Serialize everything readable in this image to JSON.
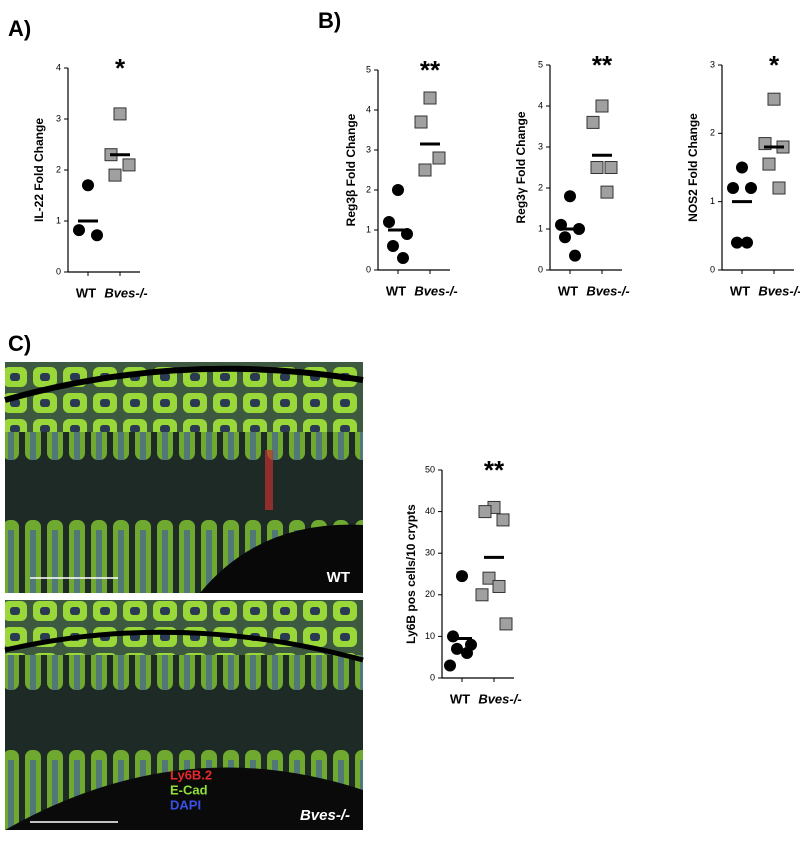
{
  "panels": [
    "A)",
    "B)",
    "C)"
  ],
  "chart_data": [
    {
      "type": "dot",
      "title": "IL-22  Fold Change",
      "annotation": "*",
      "ylim": [
        0,
        4
      ],
      "yticks": [
        0,
        1,
        2,
        3,
        4
      ],
      "series": [
        {
          "name": "WT",
          "color": "#000000",
          "marker": "circle",
          "values": [
            1.7,
            0.82,
            0.72
          ],
          "mean": 1.0
        },
        {
          "name": "Bves-/-",
          "color": "#a0a0a0",
          "marker": "square",
          "values": [
            3.1,
            2.3,
            2.1,
            1.9
          ],
          "mean": 2.3
        }
      ]
    },
    {
      "type": "dot",
      "title": "Reg3β Fold Change",
      "annotation": "**",
      "ylim": [
        0,
        5
      ],
      "yticks": [
        0,
        1,
        2,
        3,
        4,
        5
      ],
      "series": [
        {
          "name": "WT",
          "color": "#000000",
          "marker": "circle",
          "values": [
            2.0,
            1.2,
            0.9,
            0.6,
            0.3
          ],
          "mean": 1.0
        },
        {
          "name": "Bves-/-",
          "color": "#a0a0a0",
          "marker": "square",
          "values": [
            4.3,
            3.7,
            2.8,
            2.5
          ],
          "mean": 3.15
        }
      ]
    },
    {
      "type": "dot",
      "title": "Reg3γ Fold Change",
      "annotation": "**",
      "ylim": [
        0,
        5
      ],
      "yticks": [
        0,
        1,
        2,
        3,
        4,
        5
      ],
      "series": [
        {
          "name": "WT",
          "color": "#000000",
          "marker": "circle",
          "values": [
            1.8,
            1.1,
            1.0,
            0.8,
            0.35
          ],
          "mean": 1.0
        },
        {
          "name": "Bves-/-",
          "color": "#a0a0a0",
          "marker": "square",
          "values": [
            4.0,
            3.6,
            2.5,
            2.5,
            1.9
          ],
          "mean": 2.8
        }
      ]
    },
    {
      "type": "dot",
      "title": "NOS2 Fold Change",
      "annotation": "*",
      "ylim": [
        0,
        3
      ],
      "yticks": [
        0,
        1,
        2,
        3
      ],
      "series": [
        {
          "name": "WT",
          "color": "#000000",
          "marker": "circle",
          "values": [
            1.5,
            1.2,
            1.2,
            0.4,
            0.4
          ],
          "mean": 1.0
        },
        {
          "name": "Bves-/-",
          "color": "#a0a0a0",
          "marker": "square",
          "values": [
            2.5,
            1.85,
            1.8,
            1.55,
            1.2
          ],
          "mean": 1.8
        }
      ]
    },
    {
      "type": "dot",
      "title": "Ly6B pos cells/10 crypts",
      "annotation": "**",
      "ylim": [
        0,
        50
      ],
      "yticks": [
        0,
        10,
        20,
        30,
        40,
        50
      ],
      "series": [
        {
          "name": "WT",
          "color": "#000000",
          "marker": "circle",
          "values": [
            24.5,
            10,
            8,
            7,
            6,
            3
          ],
          "mean": 9.5
        },
        {
          "name": "Bves-/-",
          "color": "#a0a0a0",
          "marker": "square",
          "values": [
            41,
            40,
            38,
            24,
            22,
            20,
            13
          ],
          "mean": 29
        }
      ]
    }
  ],
  "images": {
    "wt_label": "WT",
    "bves_label": "Bves-/-",
    "stains": [
      {
        "name": "Ly6B.2",
        "color": "#e8282a"
      },
      {
        "name": "E-Cad",
        "color": "#8fe03a"
      },
      {
        "name": "DAPI",
        "color": "#3a50e8"
      }
    ]
  }
}
